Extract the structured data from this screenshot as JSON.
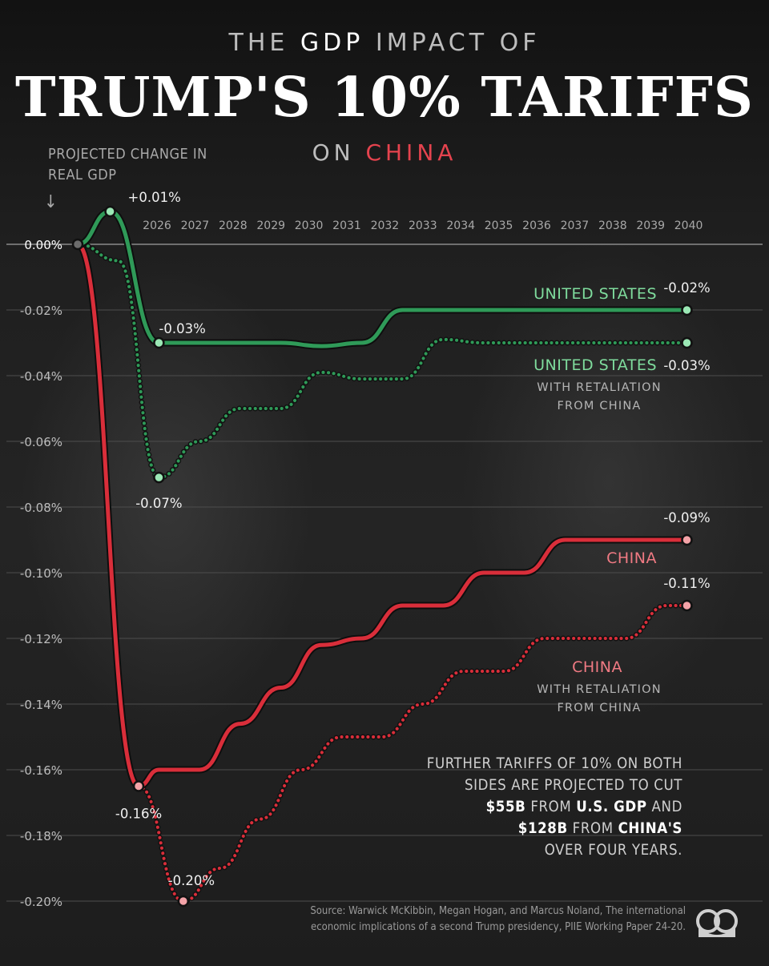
{
  "title": {
    "line1_pre": "THE ",
    "line1_hl": "GDP",
    "line1_post": " IMPACT OF",
    "line2": "TRUMP'S 10% TARIFFS",
    "line3_pre": "ON ",
    "line3_hl": "CHINA"
  },
  "y_axis_title_line1": "PROJECTED CHANGE IN",
  "y_axis_title_line2": "REAL GDP",
  "note": {
    "l1": "FURTHER TARIFFS OF 10% ON BOTH",
    "l2": "SIDES ARE PROJECTED TO CUT",
    "l3a": "$55B",
    "l3b": " FROM ",
    "l3c": "U.S. GDP",
    "l3d": " AND",
    "l4a": "$128B",
    "l4b": " FROM ",
    "l4c": "CHINA'S",
    "l5": "OVER FOUR YEARS."
  },
  "source_line1": "Source: Warwick McKibbin, Megan Hogan, and Marcus Noland, The international",
  "source_line2": "economic implications of a second Trump presidency, PIIE Working Paper 24-20.",
  "logo_icon": "visual-capitalist-logo-icon",
  "colors": {
    "us": "#2f9a58",
    "us_marker": "#9be8b5",
    "china": "#d92e3a",
    "china_marker": "#f4a3a8",
    "start_marker": "#6b6b6b"
  },
  "chart_data": {
    "type": "line",
    "x_ticks": [
      "2026",
      "2027",
      "2028",
      "2029",
      "2030",
      "2031",
      "2032",
      "2033",
      "2034",
      "2035",
      "2036",
      "2037",
      "2038",
      "2039",
      "2040"
    ],
    "y_ticks": [
      "0.00%",
      "-0.02%",
      "-0.04%",
      "-0.06%",
      "-0.08%",
      "-0.10%",
      "-0.12%",
      "-0.14%",
      "-0.16%",
      "-0.18%",
      "-0.20%"
    ],
    "ylim": [
      -0.2,
      0.0
    ],
    "xlim": [
      2025,
      2040
    ],
    "series": [
      {
        "name": "UNITED STATES",
        "style": "solid",
        "color": "#2f9a58",
        "x": [
          2025,
          2025.8,
          2027,
          2028,
          2029,
          2030,
          2031,
          2032,
          2033,
          2034,
          2035,
          2036,
          2037,
          2038,
          2039,
          2040
        ],
        "y": [
          0.0,
          0.01,
          -0.03,
          -0.03,
          -0.03,
          -0.03,
          -0.031,
          -0.03,
          -0.02,
          -0.02,
          -0.02,
          -0.02,
          -0.02,
          -0.02,
          -0.02,
          -0.02
        ],
        "labels": [
          {
            "x": 2025.8,
            "text": "+0.01%"
          },
          {
            "x": 2027,
            "text": "-0.03%"
          },
          {
            "x": 2040,
            "text": "-0.02%"
          }
        ]
      },
      {
        "name": "UNITED STATES",
        "subtitle_line1": "WITH RETALIATION",
        "subtitle_line2": "FROM CHINA",
        "style": "dotted",
        "color": "#2f9a58",
        "x": [
          2025,
          2026,
          2027,
          2028,
          2029,
          2030,
          2031,
          2032,
          2033,
          2034,
          2035,
          2036,
          2037,
          2038,
          2039,
          2040
        ],
        "y": [
          0.0,
          -0.005,
          -0.071,
          -0.06,
          -0.05,
          -0.05,
          -0.039,
          -0.041,
          -0.041,
          -0.029,
          -0.03,
          -0.03,
          -0.03,
          -0.03,
          -0.03,
          -0.03
        ],
        "labels": [
          {
            "x": 2027,
            "text": "-0.07%"
          },
          {
            "x": 2040,
            "text": "-0.03%"
          }
        ]
      },
      {
        "name": "CHINA",
        "style": "solid",
        "color": "#d92e3a",
        "x": [
          2025,
          2026.5,
          2027,
          2028,
          2029,
          2030,
          2031,
          2032,
          2033,
          2034,
          2035,
          2036,
          2037,
          2038,
          2039,
          2040
        ],
        "y": [
          0.0,
          -0.165,
          -0.16,
          -0.16,
          -0.146,
          -0.135,
          -0.122,
          -0.12,
          -0.11,
          -0.11,
          -0.1,
          -0.1,
          -0.09,
          -0.09,
          -0.09,
          -0.09
        ],
        "labels": [
          {
            "x": 2026.5,
            "text": "-0.16%"
          },
          {
            "x": 2040,
            "text": "-0.09%"
          }
        ]
      },
      {
        "name": "CHINA",
        "subtitle_line1": "WITH RETALIATION",
        "subtitle_line2": "FROM CHINA",
        "style": "dotted",
        "color": "#d92e3a",
        "x": [
          2025,
          2026.5,
          2027.6,
          2028.5,
          2029.5,
          2030.5,
          2031.5,
          2032.5,
          2033.5,
          2034.5,
          2035.5,
          2036.5,
          2037.5,
          2038.5,
          2039.5,
          2040
        ],
        "y": [
          0.0,
          -0.165,
          -0.2,
          -0.19,
          -0.175,
          -0.16,
          -0.15,
          -0.15,
          -0.14,
          -0.13,
          -0.13,
          -0.12,
          -0.12,
          -0.12,
          -0.11,
          -0.11
        ],
        "labels": [
          {
            "x": 2027.6,
            "text": "-0.20%"
          },
          {
            "x": 2040,
            "text": "-0.11%"
          }
        ]
      }
    ]
  }
}
